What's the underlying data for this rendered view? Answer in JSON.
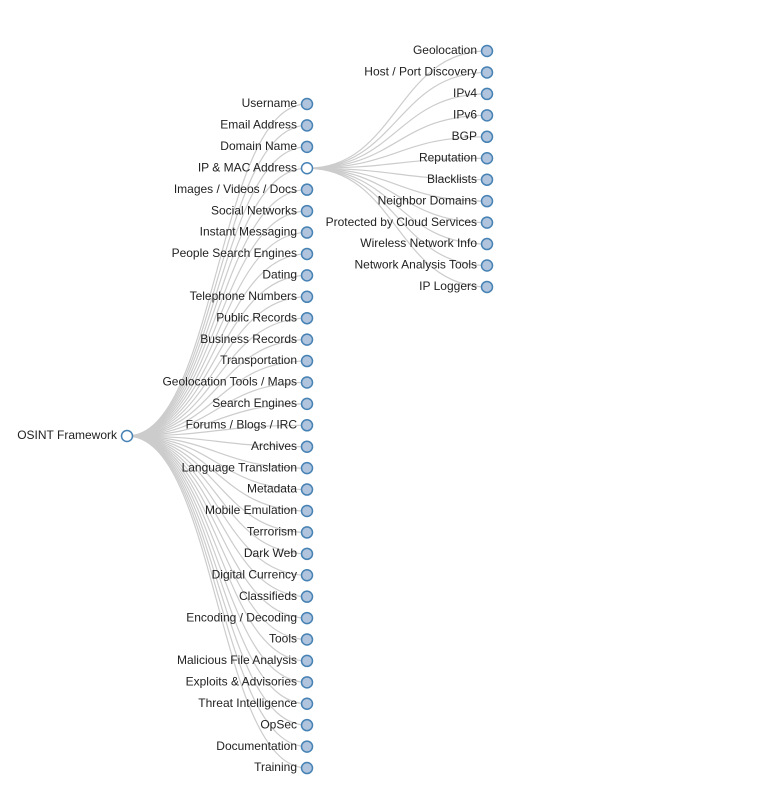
{
  "root": {
    "label": "OSINT Framework",
    "children": [
      {
        "label": "Username"
      },
      {
        "label": "Email Address"
      },
      {
        "label": "Domain Name"
      },
      {
        "label": "IP & MAC Address",
        "children": [
          {
            "label": "Geolocation"
          },
          {
            "label": "Host / Port Discovery"
          },
          {
            "label": "IPv4"
          },
          {
            "label": "IPv6"
          },
          {
            "label": "BGP"
          },
          {
            "label": "Reputation"
          },
          {
            "label": "Blacklists"
          },
          {
            "label": "Neighbor Domains"
          },
          {
            "label": "Protected by Cloud Services"
          },
          {
            "label": "Wireless Network Info"
          },
          {
            "label": "Network Analysis Tools"
          },
          {
            "label": "IP Loggers"
          }
        ]
      },
      {
        "label": "Images / Videos / Docs"
      },
      {
        "label": "Social Networks"
      },
      {
        "label": "Instant Messaging"
      },
      {
        "label": "People Search Engines"
      },
      {
        "label": "Dating"
      },
      {
        "label": "Telephone Numbers"
      },
      {
        "label": "Public Records"
      },
      {
        "label": "Business Records"
      },
      {
        "label": "Transportation"
      },
      {
        "label": "Geolocation Tools / Maps"
      },
      {
        "label": "Search Engines"
      },
      {
        "label": "Forums / Blogs / IRC"
      },
      {
        "label": "Archives"
      },
      {
        "label": "Language Translation"
      },
      {
        "label": "Metadata"
      },
      {
        "label": "Mobile Emulation"
      },
      {
        "label": "Terrorism"
      },
      {
        "label": "Dark Web"
      },
      {
        "label": "Digital Currency"
      },
      {
        "label": "Classifieds"
      },
      {
        "label": "Encoding / Decoding"
      },
      {
        "label": "Tools"
      },
      {
        "label": "Malicious File Analysis"
      },
      {
        "label": "Exploits & Advisories"
      },
      {
        "label": "Threat Intelligence"
      },
      {
        "label": "OpSec"
      },
      {
        "label": "Documentation"
      },
      {
        "label": "Training"
      }
    ]
  }
}
